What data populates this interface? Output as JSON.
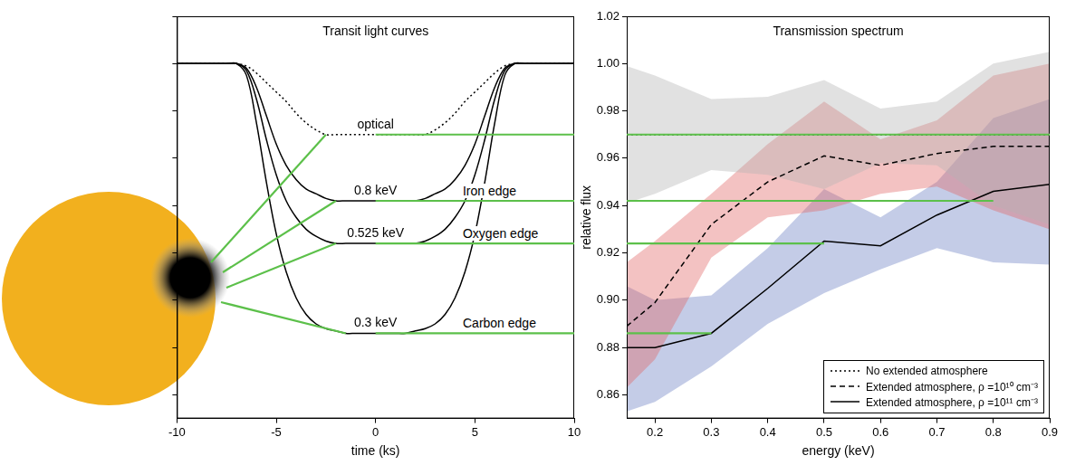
{
  "chart_data": [
    {
      "type": "line",
      "title": "Transit light curves",
      "xlabel": "time (ks)",
      "x": [
        -10,
        -9.5,
        -9,
        -8.5,
        -8,
        -7.5,
        -7,
        -6.5,
        -6,
        -5.5,
        -5,
        -4.5,
        -4,
        -3.5,
        -3,
        -2.5,
        -2,
        -1.5,
        -1,
        -0.5,
        0,
        0.5,
        1,
        1.5,
        2,
        2.5,
        3,
        3.5,
        4,
        4.5,
        5,
        5.5,
        6,
        6.5,
        7,
        7.5,
        8,
        8.5,
        9,
        9.5,
        10
      ],
      "series": [
        {
          "name": "optical",
          "color": "#000000",
          "line_style": "dotted",
          "values": [
            1,
            1,
            1,
            1,
            1,
            1,
            1,
            0.999,
            0.996,
            0.992,
            0.988,
            0.984,
            0.979,
            0.975,
            0.972,
            0.97,
            0.97,
            0.97,
            0.97,
            0.97,
            0.97,
            0.97,
            0.97,
            0.97,
            0.97,
            0.97,
            0.972,
            0.975,
            0.979,
            0.984,
            0.988,
            0.992,
            0.996,
            0.999,
            1,
            1,
            1,
            1,
            1,
            1,
            1
          ]
        },
        {
          "name": "0.8 keV",
          "annotation": "Iron edge",
          "color": "#000000",
          "line_style": "solid",
          "values": [
            1,
            1,
            1,
            1,
            1,
            1,
            1,
            0.998,
            0.99,
            0.978,
            0.966,
            0.957,
            0.951,
            0.947,
            0.945,
            0.943,
            0.942,
            0.942,
            0.942,
            0.942,
            0.942,
            0.942,
            0.942,
            0.942,
            0.942,
            0.943,
            0.945,
            0.947,
            0.951,
            0.957,
            0.966,
            0.978,
            0.99,
            0.998,
            1,
            1,
            1,
            1,
            1,
            1,
            1
          ]
        },
        {
          "name": "0.525 keV",
          "annotation": "Oxygen edge",
          "color": "#000000",
          "line_style": "solid",
          "values": [
            1,
            1,
            1,
            1,
            1,
            1,
            1,
            0.997,
            0.985,
            0.968,
            0.953,
            0.942,
            0.935,
            0.93,
            0.927,
            0.925,
            0.924,
            0.924,
            0.924,
            0.924,
            0.924,
            0.924,
            0.924,
            0.924,
            0.924,
            0.925,
            0.927,
            0.93,
            0.935,
            0.942,
            0.953,
            0.968,
            0.985,
            0.997,
            1,
            1,
            1,
            1,
            1,
            1,
            1
          ]
        },
        {
          "name": "0.3 keV",
          "annotation": "Carbon edge",
          "color": "#000000",
          "line_style": "solid",
          "values": [
            1,
            1,
            1,
            1,
            1,
            1,
            1,
            0.995,
            0.975,
            0.95,
            0.928,
            0.912,
            0.901,
            0.894,
            0.89,
            0.888,
            0.887,
            0.886,
            0.886,
            0.886,
            0.886,
            0.886,
            0.886,
            0.886,
            0.887,
            0.888,
            0.89,
            0.894,
            0.901,
            0.912,
            0.928,
            0.95,
            0.975,
            0.995,
            1,
            1,
            1,
            1,
            1,
            1,
            1
          ]
        }
      ],
      "xlim": [
        -10,
        10
      ],
      "xticks": [
        -10,
        -5,
        0,
        5,
        10
      ],
      "ylim": [
        0.85,
        1.02
      ],
      "yticks": [
        0.86,
        0.88,
        0.9,
        0.92,
        0.94,
        0.96,
        0.98,
        1,
        1.02
      ],
      "tick_labels": "x",
      "grid": false
    },
    {
      "type": "line",
      "title": "Transmission spectrum",
      "xlabel": "energy (keV)",
      "ylabel": "relative flux",
      "x": [
        0.15,
        0.2,
        0.3,
        0.4,
        0.5,
        0.6,
        0.7,
        0.8,
        0.9
      ],
      "series": [
        {
          "name": "No extended atmosphere",
          "color": "#b4b4b4",
          "line_style": "dotted",
          "values": [
            0.97,
            0.97,
            0.97,
            0.97,
            0.97,
            0.97,
            0.97,
            0.97,
            0.97
          ],
          "lower": [
            0.941,
            0.945,
            0.955,
            0.953,
            0.947,
            0.958,
            0.957,
            0.94,
            0.932
          ],
          "upper": [
            0.999,
            0.995,
            0.985,
            0.986,
            0.993,
            0.981,
            0.984,
            1.0,
            1.005
          ]
        },
        {
          "name": "Extended atmosphere, ρ =10¹⁰ cm⁻³",
          "color": "#e06666",
          "line_style": "dashed",
          "values": [
            0.889,
            0.899,
            0.932,
            0.95,
            0.961,
            0.957,
            0.962,
            0.965,
            0.965
          ],
          "lower": [
            0.863,
            0.875,
            0.918,
            0.935,
            0.938,
            0.945,
            0.948,
            0.938,
            0.93
          ],
          "upper": [
            0.916,
            0.925,
            0.945,
            0.966,
            0.984,
            0.968,
            0.976,
            0.995,
            1.0
          ]
        },
        {
          "name": "Extended atmosphere, ρ =10¹¹ cm⁻³",
          "color": "#6b7fc4",
          "line_style": "solid",
          "values": [
            0.88,
            0.88,
            0.886,
            0.905,
            0.925,
            0.923,
            0.936,
            0.946,
            0.949
          ],
          "lower": [
            0.853,
            0.857,
            0.872,
            0.89,
            0.903,
            0.913,
            0.922,
            0.916,
            0.915
          ],
          "upper": [
            0.906,
            0.9,
            0.902,
            0.922,
            0.947,
            0.935,
            0.95,
            0.977,
            0.985
          ]
        }
      ],
      "xlim": [
        0.15,
        0.9
      ],
      "xticks": [
        0.2,
        0.3,
        0.4,
        0.5,
        0.6,
        0.7,
        0.8,
        0.9
      ],
      "ylim": [
        0.85,
        1.02
      ],
      "yticks": [
        0.86,
        0.88,
        {
          "value": 0.9,
          "label": "0.90"
        },
        0.92,
        0.94,
        0.96,
        0.98,
        {
          "value": 1,
          "label": "1.00"
        },
        1.02
      ],
      "legend": "lower right",
      "grid": false
    }
  ]
}
